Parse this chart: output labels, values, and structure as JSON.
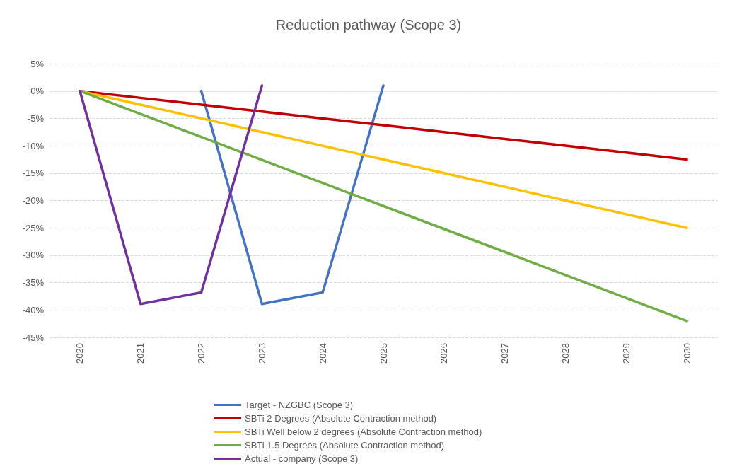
{
  "chart_data": {
    "type": "line",
    "title": "Reduction pathway (Scope 3)",
    "categories": [
      "2020",
      "2021",
      "2022",
      "2023",
      "2024",
      "2025",
      "2026",
      "2027",
      "2028",
      "2029",
      "2030"
    ],
    "series": [
      {
        "name": "Target - NZGBC (Scope 3)",
        "color": "#4472c4",
        "values": [
          null,
          null,
          0,
          -38.9,
          -36.8,
          1,
          null,
          null,
          null,
          null,
          null
        ]
      },
      {
        "name": "SBTi 2 Degrees (Absolute Contraction method)",
        "color": "#c00000",
        "values": [
          0,
          -1.25,
          -2.5,
          -3.75,
          -5,
          -6.25,
          -7.5,
          -8.75,
          -10,
          -11.25,
          -12.5
        ]
      },
      {
        "name": "SBTi Well below 2 degrees (Absolute Contraction method)",
        "color": "#ffc000",
        "values": [
          0,
          -2.5,
          -5,
          -7.5,
          -10,
          -12.5,
          -15,
          -17.5,
          -20,
          -22.5,
          -25
        ]
      },
      {
        "name": "SBTi 1.5 Degrees (Absolute Contraction method)",
        "color": "#70ad47",
        "values": [
          0,
          -4.2,
          -8.4,
          -12.6,
          -16.8,
          -21,
          -25.2,
          -29.4,
          -33.6,
          -37.8,
          -42
        ]
      },
      {
        "name": "Actual - company (Scope 3)",
        "color": "#7030a0",
        "values": [
          0,
          -38.9,
          -36.8,
          1,
          null,
          null,
          null,
          null,
          null,
          null,
          null
        ]
      }
    ],
    "ylim": [
      -45,
      5
    ],
    "yticks": [
      {
        "value": -45,
        "label": "-45%"
      },
      {
        "value": -40,
        "label": "-40%"
      },
      {
        "value": -35,
        "label": "-35%"
      },
      {
        "value": -30,
        "label": "-30%"
      },
      {
        "value": -25,
        "label": "-25%"
      },
      {
        "value": -20,
        "label": "-20%"
      },
      {
        "value": -15,
        "label": "-15%"
      },
      {
        "value": -10,
        "label": "-10%"
      },
      {
        "value": -5,
        "label": "-5%"
      },
      {
        "value": 0,
        "label": "0%"
      },
      {
        "value": 5,
        "label": "5%"
      }
    ],
    "grid": "y",
    "legend": "bottom",
    "marker": "none",
    "line_style": "solid"
  }
}
